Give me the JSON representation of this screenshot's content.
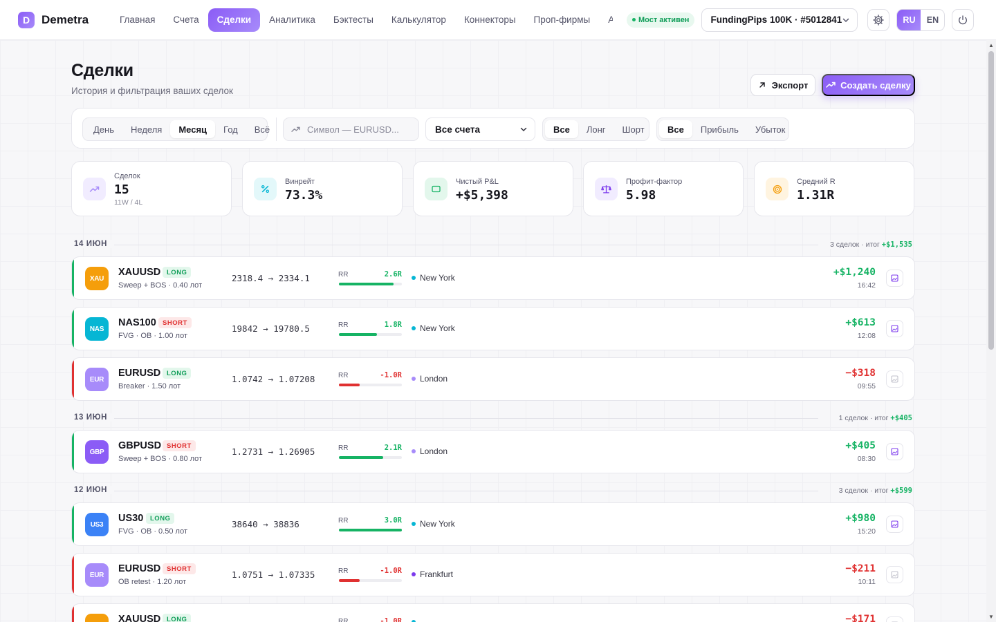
{
  "app": {
    "logo_letter": "D",
    "name": "Demetra"
  },
  "nav": [
    "Главная",
    "Счета",
    "Сделки",
    "Аналитика",
    "Бэктесты",
    "Калькулятор",
    "Коннекторы",
    "Проп-фирмы",
    "Ак"
  ],
  "bridge_status": "Мост активен",
  "account_selector": "FundingPips 100K · #5012841",
  "languages": [
    "RU",
    "EN"
  ],
  "page": {
    "title": "Сделки",
    "subtitle": "История и фильтрация ваших сделок",
    "export_label": "Экспорт",
    "create_label": "Создать сделку"
  },
  "filters": {
    "period": [
      "День",
      "Неделя",
      "Месяц",
      "Год",
      "Всё"
    ],
    "period_selected": "Месяц",
    "symbol_placeholder": "Символ — EURUSD...",
    "account_value": "Все счета",
    "direction": [
      "Все",
      "Лонг",
      "Шорт"
    ],
    "outcome": [
      "Все",
      "Прибыль",
      "Убыток"
    ]
  },
  "stats": {
    "trades": {
      "label": "Сделок",
      "value": "15",
      "sub": "11W / 4L"
    },
    "winrate": {
      "label": "Винрейт",
      "value": "73.3%"
    },
    "net_pnl": {
      "label": "Чистый P&L",
      "value": "+$5,398"
    },
    "profit_factor": {
      "label": "Профит-фактор",
      "value": "5.98"
    },
    "avg_r": {
      "label": "Средний R",
      "value": "1.31R"
    }
  },
  "rr_label": "RR",
  "days": [
    {
      "date": "14 ИЮН",
      "summary": "3 сделок · итог",
      "total": "+$1,535"
    },
    {
      "date": "13 ИЮН",
      "summary": "1 сделок · итог",
      "total": "+$405"
    },
    {
      "date": "12 ИЮН",
      "summary": "3 сделок · итог",
      "total": "+$599"
    }
  ],
  "trades": [
    {
      "icon": "XAU",
      "symbol": "XAUUSD",
      "side": "LONG",
      "setup": "Sweep + BOS · 0.40 лот",
      "prices": "2318.4 → 2334.1",
      "rr": "2.6R",
      "rr_fraction": 0.87,
      "session": "New York",
      "pnl": "+$1,240",
      "time": "16:42",
      "result": "win",
      "icon_color": "#f59e0b",
      "session_color": "#06b6d4"
    },
    {
      "icon": "NAS",
      "symbol": "NAS100",
      "side": "SHORT",
      "setup": "FVG · OB · 1.00 лот",
      "prices": "19842 → 19780.5",
      "rr": "1.8R",
      "rr_fraction": 0.6,
      "session": "New York",
      "pnl": "+$613",
      "time": "12:08",
      "result": "win",
      "icon_color": "#06b6d4",
      "session_color": "#06b6d4"
    },
    {
      "icon": "EUR",
      "symbol": "EURUSD",
      "side": "LONG",
      "setup": "Breaker · 1.50 лот",
      "prices": "1.0742 → 1.07208",
      "rr": "-1.0R",
      "rr_fraction": 0.33,
      "session": "London",
      "pnl": "−$318",
      "time": "09:55",
      "result": "loss",
      "icon_color": "#a78bfa",
      "session_color": "#a78bfa"
    },
    {
      "icon": "GBP",
      "symbol": "GBPUSD",
      "side": "SHORT",
      "setup": "Sweep + BOS · 0.80 лот",
      "prices": "1.2731 → 1.26905",
      "rr": "2.1R",
      "rr_fraction": 0.7,
      "session": "London",
      "pnl": "+$405",
      "time": "08:30",
      "result": "win",
      "icon_color": "#8b5cf6",
      "session_color": "#a78bfa"
    },
    {
      "icon": "US3",
      "symbol": "US30",
      "side": "LONG",
      "setup": "FVG · OB · 0.50 лот",
      "prices": "38640 → 38836",
      "rr": "3.0R",
      "rr_fraction": 1.0,
      "session": "New York",
      "pnl": "+$980",
      "time": "15:20",
      "result": "win",
      "icon_color": "#3b82f6",
      "session_color": "#06b6d4"
    },
    {
      "icon": "EUR",
      "symbol": "EURUSD",
      "side": "SHORT",
      "setup": "OB retest · 1.20 лот",
      "prices": "1.0751 → 1.07335",
      "rr": "-1.0R",
      "rr_fraction": 0.33,
      "session": "Frankfurt",
      "pnl": "−$211",
      "time": "10:11",
      "result": "loss",
      "icon_color": "#a78bfa",
      "session_color": "#7c3aed"
    },
    {
      "icon": "XAU",
      "symbol": "XAUUSD",
      "side": "LONG",
      "setup": "",
      "prices": "",
      "rr": "-1.0R",
      "rr_fraction": 0.33,
      "session": "",
      "pnl": "−$171",
      "time": "",
      "result": "loss",
      "icon_color": "#f59e0b",
      "session_color": "#06b6d4"
    }
  ],
  "colors": {
    "accent": "#8b5cf6",
    "positive": "#16b364",
    "negative": "#e03131"
  }
}
